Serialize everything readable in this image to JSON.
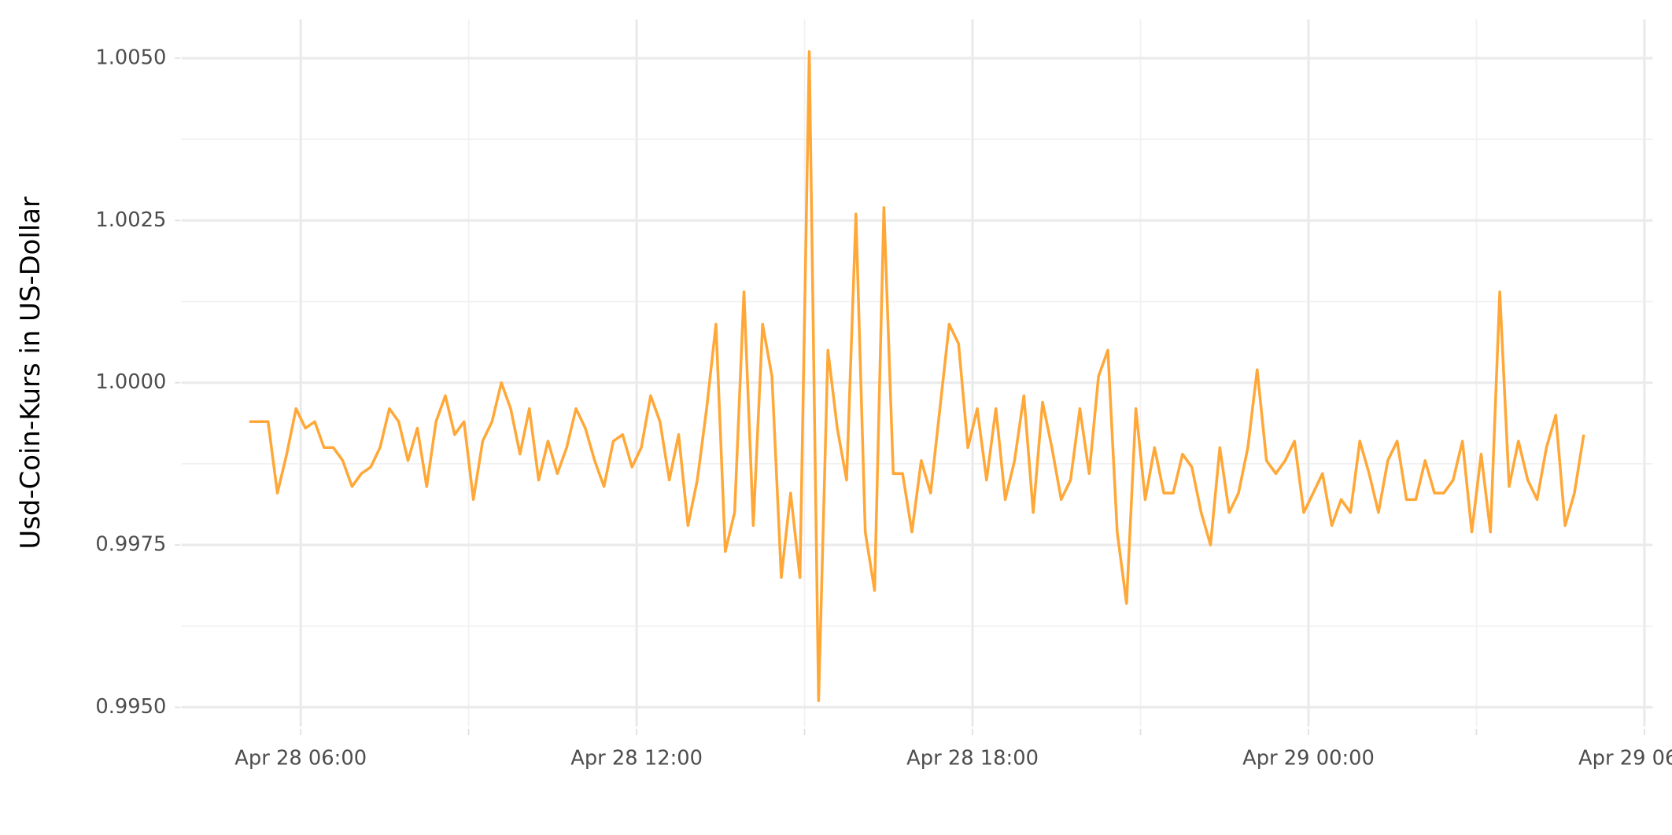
{
  "chart_data": {
    "type": "line",
    "y_label": "Usd-Coin-Kurs in US-Dollar",
    "x": [
      "Apr 28 05:05",
      "Apr 28 05:15",
      "Apr 28 05:25",
      "Apr 28 05:35",
      "Apr 28 05:45",
      "Apr 28 05:55",
      "Apr 28 06:05",
      "Apr 28 06:15",
      "Apr 28 06:25",
      "Apr 28 06:35",
      "Apr 28 06:45",
      "Apr 28 06:55",
      "Apr 28 07:05",
      "Apr 28 07:15",
      "Apr 28 07:25",
      "Apr 28 07:35",
      "Apr 28 07:45",
      "Apr 28 07:55",
      "Apr 28 08:05",
      "Apr 28 08:15",
      "Apr 28 08:25",
      "Apr 28 08:35",
      "Apr 28 08:45",
      "Apr 28 08:55",
      "Apr 28 09:05",
      "Apr 28 09:15",
      "Apr 28 09:25",
      "Apr 28 09:35",
      "Apr 28 09:45",
      "Apr 28 09:55",
      "Apr 28 10:05",
      "Apr 28 10:15",
      "Apr 28 10:25",
      "Apr 28 10:35",
      "Apr 28 10:45",
      "Apr 28 10:55",
      "Apr 28 11:05",
      "Apr 28 11:15",
      "Apr 28 11:25",
      "Apr 28 11:35",
      "Apr 28 11:45",
      "Apr 28 11:55",
      "Apr 28 12:05",
      "Apr 28 12:15",
      "Apr 28 12:25",
      "Apr 28 12:35",
      "Apr 28 12:45",
      "Apr 28 12:55",
      "Apr 28 13:05",
      "Apr 28 13:15",
      "Apr 28 13:25",
      "Apr 28 13:35",
      "Apr 28 13:45",
      "Apr 28 13:55",
      "Apr 28 14:05",
      "Apr 28 14:15",
      "Apr 28 14:25",
      "Apr 28 14:35",
      "Apr 28 14:45",
      "Apr 28 14:55",
      "Apr 28 15:05",
      "Apr 28 15:15",
      "Apr 28 15:25",
      "Apr 28 15:35",
      "Apr 28 15:45",
      "Apr 28 15:55",
      "Apr 28 16:05",
      "Apr 28 16:15",
      "Apr 28 16:25",
      "Apr 28 16:35",
      "Apr 28 16:45",
      "Apr 28 16:55",
      "Apr 28 17:05",
      "Apr 28 17:15",
      "Apr 28 17:25",
      "Apr 28 17:35",
      "Apr 28 17:45",
      "Apr 28 17:55",
      "Apr 28 18:05",
      "Apr 28 18:15",
      "Apr 28 18:25",
      "Apr 28 18:35",
      "Apr 28 18:45",
      "Apr 28 18:55",
      "Apr 28 19:05",
      "Apr 28 19:15",
      "Apr 28 19:25",
      "Apr 28 19:35",
      "Apr 28 19:45",
      "Apr 28 19:55",
      "Apr 28 20:05",
      "Apr 28 20:15",
      "Apr 28 20:25",
      "Apr 28 20:35",
      "Apr 28 20:45",
      "Apr 28 20:55",
      "Apr 28 21:05",
      "Apr 28 21:15",
      "Apr 28 21:25",
      "Apr 28 21:35",
      "Apr 28 21:45",
      "Apr 28 21:55",
      "Apr 28 22:05",
      "Apr 28 22:15",
      "Apr 28 22:25",
      "Apr 28 22:35",
      "Apr 28 22:45",
      "Apr 28 22:55",
      "Apr 28 23:05",
      "Apr 28 23:15",
      "Apr 28 23:25",
      "Apr 28 23:35",
      "Apr 28 23:45",
      "Apr 28 23:55",
      "Apr 29 00:05",
      "Apr 29 00:15",
      "Apr 29 00:25",
      "Apr 29 00:35",
      "Apr 29 00:45",
      "Apr 29 00:55",
      "Apr 29 01:05",
      "Apr 29 01:15",
      "Apr 29 01:25",
      "Apr 29 01:35",
      "Apr 29 01:45",
      "Apr 29 01:55",
      "Apr 29 02:05",
      "Apr 29 02:15",
      "Apr 29 02:25",
      "Apr 29 02:35",
      "Apr 29 02:45",
      "Apr 29 02:55",
      "Apr 29 03:05",
      "Apr 29 03:15",
      "Apr 29 03:25",
      "Apr 29 03:35",
      "Apr 29 03:45",
      "Apr 29 03:55",
      "Apr 29 04:05",
      "Apr 29 04:15",
      "Apr 29 04:25",
      "Apr 29 04:35",
      "Apr 29 04:45",
      "Apr 29 04:55"
    ],
    "series": [
      {
        "name": "Usd-Coin",
        "color": "#ffa838",
        "values": [
          0.9994,
          0.9994,
          0.9994,
          0.9983,
          0.9989,
          0.9996,
          0.9993,
          0.9994,
          0.999,
          0.999,
          0.9988,
          0.9984,
          0.9986,
          0.9987,
          0.999,
          0.9996,
          0.9994,
          0.9988,
          0.9993,
          0.9984,
          0.9994,
          0.9998,
          0.9992,
          0.9994,
          0.9982,
          0.9991,
          0.9994,
          1.0,
          0.9996,
          0.9989,
          0.9996,
          0.9985,
          0.9991,
          0.9986,
          0.999,
          0.9996,
          0.9993,
          0.9988,
          0.9984,
          0.9991,
          0.9992,
          0.9987,
          0.999,
          0.9998,
          0.9994,
          0.9985,
          0.9992,
          0.9978,
          0.9985,
          0.9996,
          1.0009,
          0.9974,
          0.998,
          1.0014,
          0.9978,
          1.0009,
          1.0001,
          0.997,
          0.9983,
          0.997,
          1.0051,
          0.9951,
          1.0005,
          0.9993,
          0.9985,
          1.0026,
          0.9977,
          0.9968,
          1.0027,
          0.9986,
          0.9986,
          0.9977,
          0.9988,
          0.9983,
          0.9996,
          1.0009,
          1.0006,
          0.999,
          0.9996,
          0.9985,
          0.9996,
          0.9982,
          0.9988,
          0.9998,
          0.998,
          0.9997,
          0.999,
          0.9982,
          0.9985,
          0.9996,
          0.9986,
          1.0001,
          1.0005,
          0.9977,
          0.9966,
          0.9996,
          0.9982,
          0.999,
          0.9983,
          0.9983,
          0.9989,
          0.9987,
          0.998,
          0.9975,
          0.999,
          0.998,
          0.9983,
          0.999,
          1.0002,
          0.9988,
          0.9986,
          0.9988,
          0.9991,
          0.998,
          0.9983,
          0.9986,
          0.9978,
          0.9982,
          0.998,
          0.9991,
          0.9986,
          0.998,
          0.9988,
          0.9991,
          0.9982,
          0.9982,
          0.9988,
          0.9983,
          0.9983,
          0.9985,
          0.9991,
          0.9977,
          0.9989,
          0.9977,
          1.0014,
          0.9984,
          0.9991,
          0.9985,
          0.9982,
          0.999,
          0.9995,
          0.9978,
          0.9983,
          0.9992
        ]
      }
    ],
    "xlim": [
      "Apr 28 03:52",
      "Apr 29 06:09"
    ],
    "xticks": [
      "Apr 28 06:00",
      "Apr 28 12:00",
      "Apr 28 18:00",
      "Apr 29 00:00",
      "Apr 29 06:00"
    ],
    "x_minor_ticks": [
      "Apr 28 09:00",
      "Apr 28 15:00",
      "Apr 28 21:00",
      "Apr 29 03:00"
    ],
    "ylim": [
      0.9947,
      1.0056
    ],
    "yticks": [
      {
        "value": 0.995,
        "label": "0.9950"
      },
      {
        "value": 0.9975,
        "label": "0.9975"
      },
      {
        "value": 1,
        "label": "1.0000"
      },
      {
        "value": 1.0025,
        "label": "1.0025"
      },
      {
        "value": 1.005,
        "label": "1.0050"
      }
    ],
    "y_minor_ticks": [
      0.99625,
      0.99875,
      1.00125,
      1.00375
    ],
    "grid": true
  }
}
